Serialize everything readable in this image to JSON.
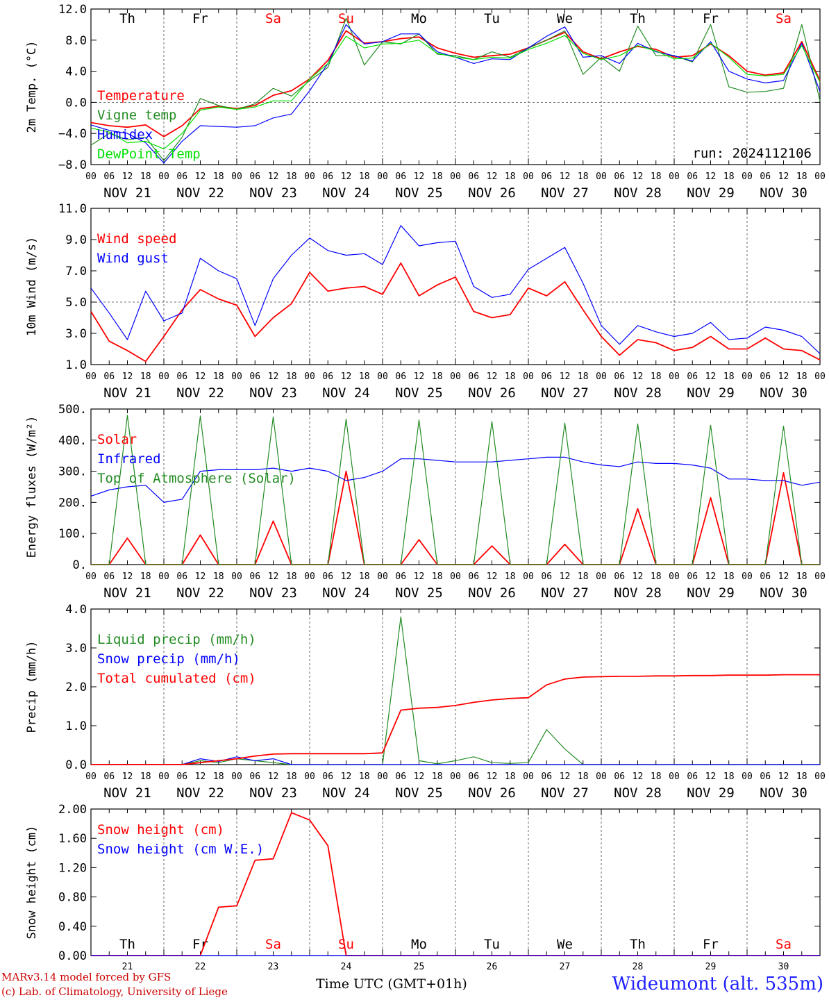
{
  "footer": {
    "credit_line1": "MARv3.14 model forced by GFS",
    "credit_line2": "(c) Lab. of Climatology, University of Liege",
    "xaxis_title": "Time UTC (GMT+01h)",
    "station": "Wideumont (alt. 535m)"
  },
  "chart_data": [
    {
      "type": "line",
      "ylabel": "2m Temp. (°C)",
      "ylim": [
        -8,
        12
      ],
      "yticks": [
        "12.0",
        "8.0",
        "4.0",
        "0.0",
        "−4.0",
        "−8.0"
      ],
      "dashed_reference_y": 0,
      "x_hours": [
        0,
        6,
        12,
        18,
        24,
        30,
        36,
        42,
        48,
        54,
        60,
        66,
        72,
        78,
        84,
        90,
        96,
        102,
        108,
        114,
        120,
        126,
        132,
        138,
        144,
        150,
        156,
        162,
        168,
        174,
        180,
        186,
        192,
        198,
        204,
        210,
        216,
        222,
        228,
        234,
        240
      ],
      "day_labels": [
        "Th",
        "Fr",
        "Sa",
        "Su",
        "Mo",
        "Tu",
        "We",
        "Th",
        "Fr",
        "Sa"
      ],
      "day_label_colors": [
        "#000000",
        "#000000",
        "#ff0000",
        "#ff0000",
        "#000000",
        "#000000",
        "#000000",
        "#000000",
        "#000000",
        "#ff0000"
      ],
      "date_labels": [
        "NOV 21",
        "NOV 22",
        "NOV 23",
        "NOV 24",
        "NOV 25",
        "NOV 26",
        "NOV 27",
        "NOV 28",
        "NOV 29",
        "NOV 30"
      ],
      "hour_ticks": [
        "00",
        "06",
        "12",
        "18"
      ],
      "annotation": "run: 2024112106",
      "series": [
        {
          "name": "Temperature",
          "color": "#ff0000",
          "values": [
            -2.6,
            -3.0,
            -3.2,
            -2.9,
            -4.4,
            -3.0,
            -0.8,
            -0.5,
            -0.8,
            -0.4,
            0.9,
            1.5,
            3.0,
            5.4,
            9.2,
            7.6,
            7.8,
            8.2,
            8.4,
            7.0,
            6.3,
            5.8,
            6.0,
            6.2,
            7.0,
            8.0,
            9.0,
            6.5,
            5.6,
            6.5,
            7.2,
            6.8,
            5.8,
            6.0,
            7.5,
            6.0,
            4.0,
            3.5,
            3.8,
            7.8,
            2.8
          ]
        },
        {
          "name": "Vigne temp",
          "color": "#228b22",
          "values": [
            -5.5,
            -4.0,
            -4.8,
            -4.5,
            -7.5,
            -4.5,
            0.5,
            -0.4,
            -0.9,
            -0.2,
            1.8,
            0.8,
            2.8,
            4.5,
            10.8,
            4.8,
            7.8,
            7.5,
            8.8,
            6.2,
            6.0,
            5.5,
            6.5,
            5.8,
            7.0,
            8.0,
            9.2,
            3.6,
            5.8,
            4.0,
            9.8,
            6.0,
            6.0,
            5.2,
            10.0,
            2.0,
            1.3,
            1.4,
            1.8,
            10.0,
            0.2
          ]
        },
        {
          "name": "Humidex",
          "color": "#0000ff",
          "values": [
            -2.9,
            -3.6,
            -4.0,
            -5.2,
            -7.8,
            -5.0,
            -3.0,
            -3.1,
            -3.2,
            -3.0,
            -2.0,
            -1.5,
            1.5,
            5.0,
            10.0,
            7.5,
            7.8,
            8.8,
            8.8,
            6.5,
            5.8,
            5.0,
            5.6,
            5.5,
            7.0,
            8.5,
            9.7,
            5.8,
            6.0,
            5.0,
            7.6,
            6.5,
            6.0,
            5.3,
            7.8,
            4.0,
            3.0,
            2.5,
            2.8,
            7.6,
            1.4
          ]
        },
        {
          "name": "DewPoint Temp",
          "color": "#00e000",
          "values": [
            -3.3,
            -3.8,
            -5.2,
            -5.0,
            -6.0,
            -4.0,
            -1.0,
            -0.6,
            -0.9,
            -0.6,
            0.2,
            0.2,
            3.0,
            5.0,
            8.5,
            7.0,
            7.5,
            7.6,
            8.0,
            6.3,
            5.8,
            5.5,
            5.8,
            5.7,
            6.8,
            7.6,
            8.6,
            6.3,
            5.5,
            6.0,
            7.3,
            6.6,
            5.6,
            5.7,
            7.6,
            5.8,
            3.6,
            3.4,
            3.6,
            7.3,
            2.6
          ]
        }
      ]
    },
    {
      "type": "line",
      "ylabel": "10m Wind (m/s)",
      "ylim": [
        1,
        11
      ],
      "yticks": [
        "11.0",
        "9.0",
        "7.0",
        "5.0",
        "3.0",
        "1.0"
      ],
      "dashed_reference_y": 5,
      "x_hours": [
        0,
        6,
        12,
        18,
        24,
        30,
        36,
        42,
        48,
        54,
        60,
        66,
        72,
        78,
        84,
        90,
        96,
        102,
        108,
        114,
        120,
        126,
        132,
        138,
        144,
        150,
        156,
        162,
        168,
        174,
        180,
        186,
        192,
        198,
        204,
        210,
        216,
        222,
        228,
        234,
        240
      ],
      "date_labels": [
        "NOV 21",
        "NOV 22",
        "NOV 23",
        "NOV 24",
        "NOV 25",
        "NOV 26",
        "NOV 27",
        "NOV 28",
        "NOV 29",
        "NOV 30"
      ],
      "hour_ticks": [
        "00",
        "06",
        "12",
        "18"
      ],
      "series": [
        {
          "name": "Wind speed",
          "color": "#ff0000",
          "values": [
            4.4,
            2.5,
            1.9,
            1.2,
            2.8,
            4.5,
            5.8,
            5.2,
            4.8,
            2.8,
            4.0,
            4.9,
            6.9,
            5.7,
            5.9,
            6.0,
            5.5,
            7.5,
            5.4,
            6.1,
            6.6,
            4.4,
            4.0,
            4.2,
            5.9,
            5.4,
            6.3,
            4.5,
            2.8,
            1.6,
            2.6,
            2.4,
            1.9,
            2.1,
            2.8,
            2.0,
            2.0,
            2.7,
            2.0,
            1.9,
            1.3
          ]
        },
        {
          "name": "Wind gust",
          "color": "#0000ff",
          "values": [
            5.9,
            4.3,
            2.6,
            5.7,
            3.8,
            4.3,
            7.8,
            7.0,
            6.5,
            3.5,
            6.5,
            8.0,
            9.1,
            8.3,
            8.0,
            8.1,
            7.4,
            9.9,
            8.6,
            8.8,
            8.9,
            6.0,
            5.3,
            5.5,
            7.1,
            7.8,
            8.5,
            6.2,
            3.5,
            2.3,
            3.5,
            3.1,
            2.8,
            3.0,
            3.7,
            2.6,
            2.7,
            3.4,
            3.2,
            2.8,
            1.7
          ]
        }
      ]
    },
    {
      "type": "line",
      "ylabel": "Energy fluxes (W/m²)",
      "ylim": [
        0,
        500
      ],
      "yticks": [
        "500.",
        "400.",
        "300.",
        "200.",
        "100.",
        "0."
      ],
      "x_hours": [
        0,
        6,
        12,
        18,
        24,
        30,
        36,
        42,
        48,
        54,
        60,
        66,
        72,
        78,
        84,
        90,
        96,
        102,
        108,
        114,
        120,
        126,
        132,
        138,
        144,
        150,
        156,
        162,
        168,
        174,
        180,
        186,
        192,
        198,
        204,
        210,
        216,
        222,
        228,
        234,
        240
      ],
      "date_labels": [
        "NOV 21",
        "NOV 22",
        "NOV 23",
        "NOV 24",
        "NOV 25",
        "NOV 26",
        "NOV 27",
        "NOV 28",
        "NOV 29",
        "NOV 30"
      ],
      "hour_ticks": [
        "00",
        "06",
        "12",
        "18"
      ],
      "series": [
        {
          "name": "Solar",
          "color": "#ff0000",
          "values": [
            0,
            0,
            85,
            0,
            0,
            0,
            95,
            0,
            0,
            0,
            140,
            0,
            0,
            0,
            300,
            0,
            0,
            0,
            80,
            0,
            0,
            0,
            60,
            0,
            0,
            0,
            65,
            0,
            0,
            0,
            180,
            0,
            0,
            0,
            215,
            0,
            0,
            0,
            295,
            0,
            0
          ]
        },
        {
          "name": "Infrared",
          "color": "#0000ff",
          "values": [
            220,
            240,
            250,
            255,
            200,
            210,
            300,
            305,
            305,
            305,
            310,
            300,
            310,
            300,
            270,
            280,
            300,
            340,
            340,
            335,
            330,
            330,
            330,
            335,
            340,
            345,
            345,
            330,
            320,
            315,
            330,
            325,
            325,
            320,
            310,
            275,
            275,
            270,
            270,
            255,
            265
          ]
        },
        {
          "name": "Top of Atmosphere (Solar)",
          "color": "#228b22",
          "values": [
            0,
            0,
            480,
            0,
            0,
            0,
            478,
            0,
            0,
            0,
            475,
            0,
            0,
            0,
            468,
            0,
            0,
            0,
            465,
            0,
            0,
            0,
            460,
            0,
            0,
            0,
            455,
            0,
            0,
            0,
            452,
            0,
            0,
            0,
            448,
            0,
            0,
            0,
            445,
            0,
            0
          ]
        }
      ]
    },
    {
      "type": "line",
      "ylabel": "Precip (mm/h)",
      "ylim": [
        0,
        4
      ],
      "yticks": [
        "4.0",
        "3.0",
        "2.0",
        "1.0",
        "0.0"
      ],
      "x_hours": [
        0,
        6,
        12,
        18,
        24,
        30,
        36,
        42,
        48,
        54,
        60,
        66,
        72,
        78,
        84,
        90,
        96,
        102,
        108,
        114,
        120,
        126,
        132,
        138,
        144,
        150,
        156,
        162,
        168,
        174,
        180,
        186,
        192,
        198,
        204,
        210,
        216,
        222,
        228,
        234,
        240
      ],
      "date_labels": [
        "NOV 21",
        "NOV 22",
        "NOV 23",
        "NOV 24",
        "NOV 25",
        "NOV 26",
        "NOV 27",
        "NOV 28",
        "NOV 29",
        "NOV 30"
      ],
      "hour_ticks": [
        "00",
        "06",
        "12",
        "18"
      ],
      "series": [
        {
          "name": "Liquid precip (mm/h)",
          "color": "#228b22",
          "values": [
            0,
            0,
            0,
            0,
            0,
            0,
            0.1,
            0.05,
            0.15,
            0.1,
            0.05,
            0,
            0,
            0,
            0,
            0,
            0,
            3.8,
            0.1,
            0.02,
            0.1,
            0.2,
            0.05,
            0.03,
            0.05,
            0.9,
            0.4,
            0,
            0,
            0,
            0,
            0,
            0,
            0,
            0,
            0,
            0,
            0,
            0,
            0,
            0
          ]
        },
        {
          "name": "Snow precip (mm/h)",
          "color": "#0000ff",
          "values": [
            0,
            0,
            0,
            0,
            0,
            0,
            0.15,
            0.08,
            0.2,
            0.1,
            0.15,
            0,
            0,
            0,
            0,
            0,
            0,
            0,
            0,
            0,
            0,
            0,
            0,
            0,
            0,
            0,
            0,
            0,
            0,
            0,
            0,
            0,
            0,
            0,
            0,
            0,
            0,
            0,
            0,
            0,
            0
          ]
        },
        {
          "name": "Total cumulated (cm)",
          "color": "#ff0000",
          "values": [
            0,
            0,
            0,
            0,
            0,
            0,
            0.05,
            0.1,
            0.15,
            0.22,
            0.27,
            0.28,
            0.28,
            0.28,
            0.28,
            0.28,
            0.3,
            1.4,
            1.45,
            1.47,
            1.52,
            1.6,
            1.66,
            1.7,
            1.72,
            2.05,
            2.2,
            2.25,
            2.26,
            2.27,
            2.27,
            2.28,
            2.28,
            2.29,
            2.29,
            2.3,
            2.3,
            2.3,
            2.31,
            2.31,
            2.31
          ]
        }
      ]
    },
    {
      "type": "line",
      "ylabel": "Snow height (cm)",
      "ylim": [
        0,
        2
      ],
      "yticks": [
        "2.00",
        "1.60",
        "1.20",
        "0.80",
        "0.40",
        "0.00"
      ],
      "x_hours": [
        0,
        6,
        12,
        18,
        24,
        30,
        36,
        42,
        48,
        54,
        60,
        66,
        72,
        78,
        84,
        90,
        96,
        102,
        108,
        114,
        120,
        126,
        132,
        138,
        144,
        150,
        156,
        162,
        168,
        174,
        180,
        186,
        192,
        198,
        204,
        210,
        216,
        222,
        228,
        234,
        240
      ],
      "day_labels": [
        "Th",
        "Fr",
        "Sa",
        "Su",
        "Mo",
        "Tu",
        "We",
        "Th",
        "Fr",
        "Sa"
      ],
      "day_label_colors": [
        "#000000",
        "#000000",
        "#ff0000",
        "#ff0000",
        "#000000",
        "#000000",
        "#000000",
        "#000000",
        "#000000",
        "#ff0000"
      ],
      "day_numbers": [
        "21",
        "22",
        "23",
        "24",
        "25",
        "26",
        "27",
        "28",
        "29",
        "30"
      ],
      "series": [
        {
          "name": "Snow height (cm)",
          "color": "#ff0000",
          "values": [
            0,
            0,
            0,
            0,
            0,
            0,
            0,
            0.66,
            0.68,
            1.3,
            1.32,
            1.95,
            1.85,
            1.5,
            0,
            0,
            0,
            0,
            0,
            0,
            0,
            0,
            0,
            0,
            0,
            0,
            0,
            0,
            0,
            0,
            0,
            0,
            0,
            0,
            0,
            0,
            0,
            0,
            0,
            0,
            0
          ]
        },
        {
          "name": "Snow height (cm W.E.)",
          "color": "#0000ff",
          "values": [
            0,
            0,
            0,
            0,
            0,
            0,
            0,
            0,
            0,
            0,
            0,
            0,
            0,
            0,
            0,
            0,
            0,
            0,
            0,
            0,
            0,
            0,
            0,
            0,
            0,
            0,
            0,
            0,
            0,
            0,
            0,
            0,
            0,
            0,
            0,
            0,
            0,
            0,
            0,
            0,
            0
          ]
        }
      ]
    }
  ]
}
